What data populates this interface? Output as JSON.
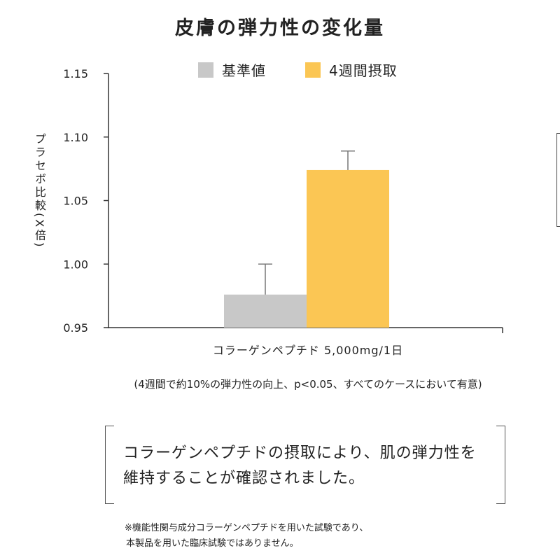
{
  "chart_data": {
    "type": "bar",
    "title": "皮膚の弾力性の変化量",
    "ylabel": "プラセボ比較(X倍)",
    "xlabel": "コラーゲンペプチド 5,000mg/1日",
    "categories": [
      "コラーゲンペプチド 5,000mg/1日"
    ],
    "ylim": [
      0.95,
      1.15
    ],
    "yticks": [
      "0.95",
      "1.00",
      "1.05",
      "1.10",
      "1.15"
    ],
    "ytick_values": [
      0.95,
      1.0,
      1.05,
      1.1,
      1.15
    ],
    "series": [
      {
        "name": "基準値",
        "value": 0.976,
        "error": 0.024,
        "color": "#c8c8c8"
      },
      {
        "name": "4週間摂取",
        "value": 1.074,
        "error": 0.015,
        "color": "#fbc654"
      }
    ],
    "grid": false,
    "legend": "top-center"
  },
  "note": "(4週間で約10%の弾力性の向上、p<0.05、すべてのケースにおいて有意)",
  "callout": {
    "line1": "コラーゲンペプチドの摂取により、肌の弾力性を",
    "line2": "維持することが確認されました。"
  },
  "footnote": {
    "line1": "※機能性関与成分コラーゲンペプチドを用いた試験であり、",
    "line2": "本製品を用いた臨床試験ではありません。"
  }
}
